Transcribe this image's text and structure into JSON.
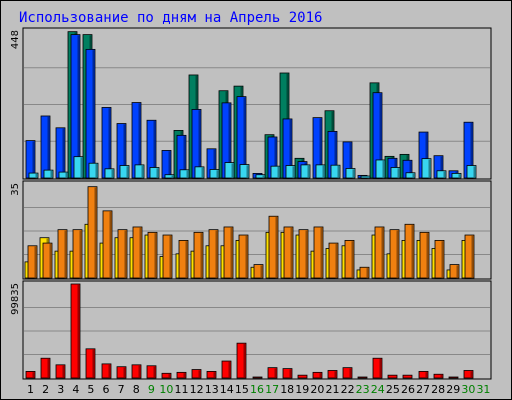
{
  "chart_data": [
    {
      "type": "bar",
      "title": "Использование по дням на Апрель 2016",
      "ylim": [
        0,
        448
      ],
      "ymax_label": "448",
      "categories": [
        "1",
        "2",
        "3",
        "4",
        "5",
        "6",
        "7",
        "8",
        "9",
        "10",
        "11",
        "12",
        "13",
        "14",
        "15",
        "16",
        "17",
        "18",
        "19",
        "20",
        "21",
        "22",
        "23",
        "24",
        "25",
        "26",
        "27",
        "28",
        "29",
        "30",
        "31"
      ],
      "weekend_days": [
        "9",
        "10",
        "16",
        "17",
        "23",
        "24",
        "30",
        "31"
      ],
      "grid": true,
      "series": [
        {
          "color": "#007f60",
          "values": [
            0,
            0,
            0,
            446,
            437,
            0,
            0,
            0,
            0,
            0,
            145,
            314,
            0,
            266,
            280,
            0,
            132,
            320,
            60,
            0,
            205,
            0,
            0,
            290,
            66,
            72,
            0,
            0,
            0,
            0,
            0
          ]
        },
        {
          "color": "#0042ff",
          "values": [
            114,
            189,
            153,
            437,
            392,
            215,
            166,
            230,
            176,
            84,
            130,
            209,
            89,
            229,
            248,
            14,
            125,
            180,
            50,
            184,
            142,
            110,
            8,
            260,
            60,
            54,
            140,
            68,
            22,
            170,
            0
          ]
        },
        {
          "color": "#38d6f0",
          "values": [
            15,
            24,
            18,
            65,
            45,
            28,
            38,
            40,
            32,
            10,
            25,
            34,
            26,
            47,
            41,
            10,
            36,
            38,
            40,
            40,
            39,
            29,
            6,
            55,
            32,
            16,
            59,
            22,
            14,
            38,
            0
          ]
        }
      ]
    },
    {
      "type": "bar",
      "ylim": [
        0,
        35
      ],
      "ymax_label": "35",
      "grid": true,
      "series": [
        {
          "color": "#ffe000",
          "values": [
            6,
            15,
            10,
            10,
            20,
            13,
            15,
            15,
            16,
            8,
            9,
            10,
            12,
            12,
            14,
            4,
            17,
            17,
            16,
            10,
            11,
            12,
            3,
            16,
            9,
            14,
            14,
            11,
            3,
            14,
            0
          ]
        },
        {
          "color": "#f08010",
          "values": [
            12,
            13,
            18,
            18,
            34,
            25,
            18,
            19,
            17,
            16,
            14,
            17,
            18,
            19,
            16,
            5,
            23,
            19,
            18,
            19,
            13,
            14,
            4,
            19,
            18,
            20,
            17,
            14,
            5,
            16,
            0
          ]
        }
      ]
    },
    {
      "type": "bar",
      "ylim": [
        0,
        99835
      ],
      "ymax_label": "99835",
      "grid": true,
      "series": [
        {
          "color": "#ff0000",
          "values": [
            7000,
            21000,
            14000,
            99835,
            31000,
            15000,
            12000,
            14000,
            13000,
            5000,
            6000,
            9000,
            7000,
            18000,
            37000,
            1000,
            11000,
            10000,
            3000,
            6000,
            8000,
            11000,
            1000,
            21000,
            3000,
            3000,
            7000,
            4000,
            1000,
            8000,
            0
          ]
        }
      ]
    }
  ]
}
